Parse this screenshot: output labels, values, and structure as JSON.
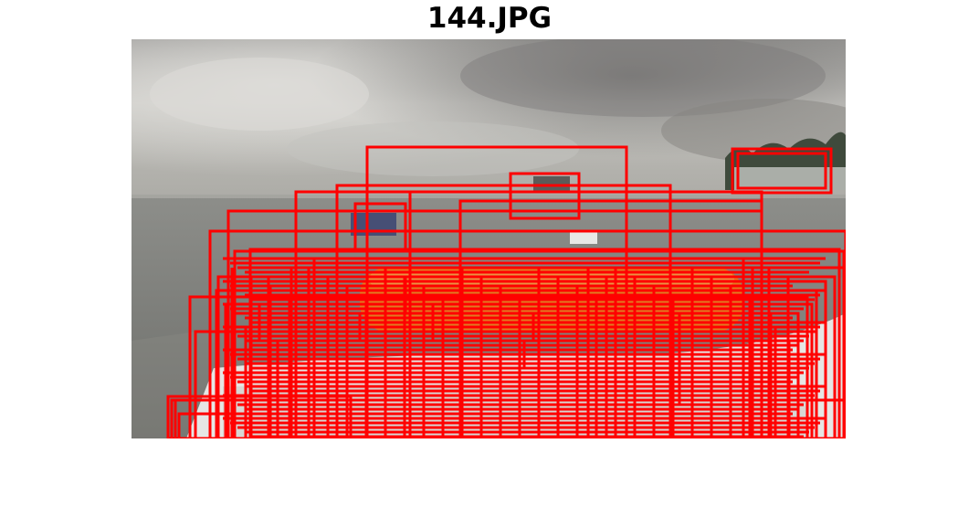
{
  "figure": {
    "title": "144.JPG"
  },
  "photo": {
    "description_icon": "photo-image",
    "palette": {
      "sky_top": "#8e8e8c",
      "sky_light": "#d4d3cf",
      "horizon": "#b8b7b2",
      "sea": "#8a8b87",
      "sea_dark": "#6c6d69",
      "boat_white": "#e6e6e4",
      "orange": "#e07b22",
      "trees": "#3f4a3c"
    }
  },
  "detections": {
    "box_color": "#ff0000"
  }
}
